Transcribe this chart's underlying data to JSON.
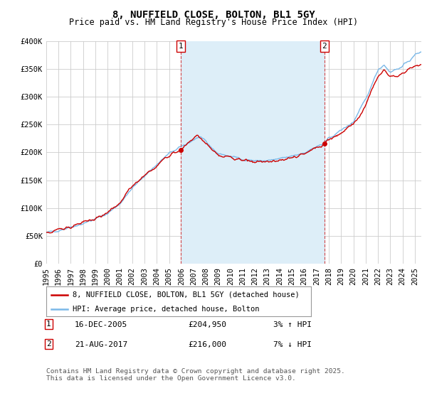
{
  "title": "8, NUFFIELD CLOSE, BOLTON, BL1 5GY",
  "subtitle": "Price paid vs. HM Land Registry's House Price Index (HPI)",
  "ylabel_ticks": [
    "£0",
    "£50K",
    "£100K",
    "£150K",
    "£200K",
    "£250K",
    "£300K",
    "£350K",
    "£400K"
  ],
  "ylim": [
    0,
    400000
  ],
  "xlim_start": 1995,
  "xlim_end": 2025.5,
  "sale1_x": 2005.96,
  "sale1_y": 204950,
  "sale2_x": 2017.64,
  "sale2_y": 216000,
  "sale1_date": "16-DEC-2005",
  "sale1_price": "£204,950",
  "sale1_hpi": "3% ↑ HPI",
  "sale2_date": "21-AUG-2017",
  "sale2_price": "£216,000",
  "sale2_hpi": "7% ↓ HPI",
  "hpi_color": "#7ab8e8",
  "price_color": "#cc0000",
  "shade_color": "#ddeef8",
  "legend1_label": "8, NUFFIELD CLOSE, BOLTON, BL1 5GY (detached house)",
  "legend2_label": "HPI: Average price, detached house, Bolton",
  "footer": "Contains HM Land Registry data © Crown copyright and database right 2025.\nThis data is licensed under the Open Government Licence v3.0.",
  "bg_color": "#ffffff",
  "grid_color": "#cccccc"
}
